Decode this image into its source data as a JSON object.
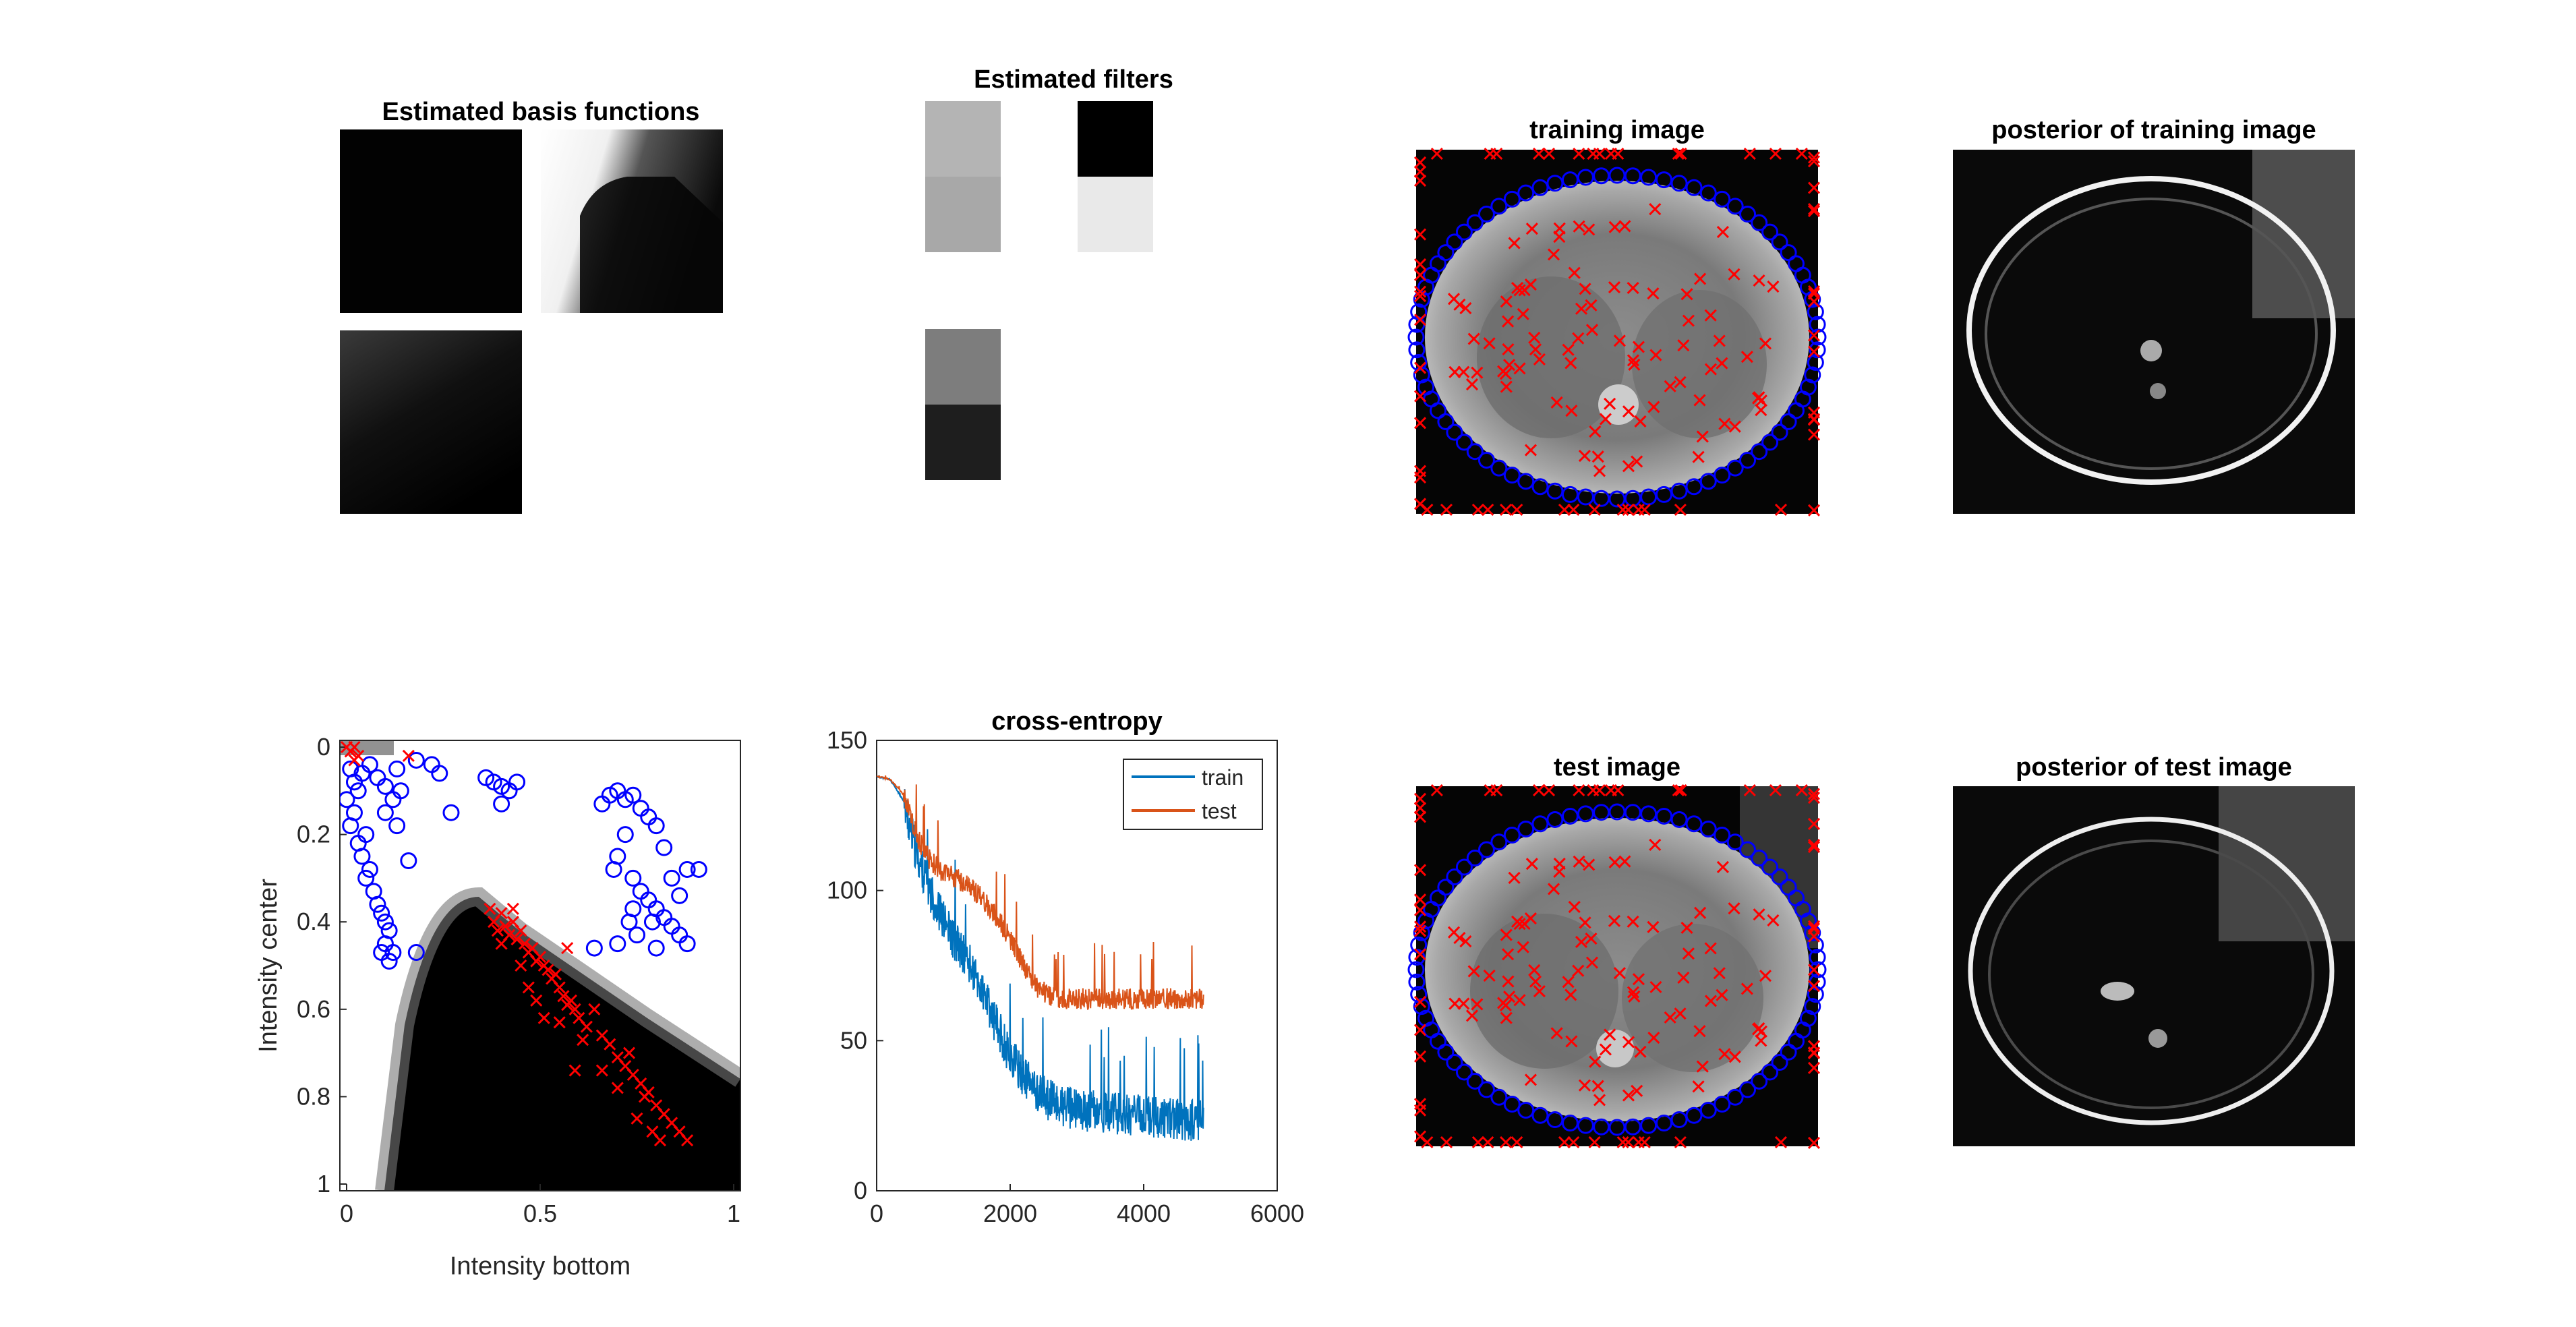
{
  "chart_data": [
    {
      "type": "image-grid",
      "title": "Estimated basis functions",
      "panels": [
        {
          "name": "basis-1",
          "shade": "dark"
        },
        {
          "name": "basis-2",
          "shade": "dark-corner"
        },
        {
          "name": "basis-3",
          "shade": "dark-gradient"
        },
        {
          "name": "basis-4",
          "shade": "blank"
        }
      ]
    },
    {
      "type": "image-grid",
      "title": "Estimated filters",
      "filters": [
        {
          "name": "filter-1",
          "blocks": [
            "#b4b4b4",
            "#a8a8a8"
          ]
        },
        {
          "name": "filter-2",
          "blocks": [
            "#000000",
            "#e9e9e9"
          ]
        },
        {
          "name": "filter-3",
          "blocks": [
            "#7d7d7d",
            "#1e1e1e"
          ]
        }
      ]
    },
    {
      "type": "image",
      "title": "training image",
      "markers": {
        "circle_color": "#0000ff",
        "cross_color": "#ff0000"
      }
    },
    {
      "type": "image",
      "title": "posterior of training image"
    },
    {
      "type": "scatter",
      "title": "",
      "xlabel": "Intensity bottom",
      "ylabel": "Intensity center",
      "xlim": [
        0,
        1
      ],
      "ylim": [
        0,
        1
      ],
      "y_reversed": true,
      "xticks": [
        "0",
        "0.5",
        "1"
      ],
      "yticks": [
        "0",
        "0.2",
        "0.4",
        "0.6",
        "0.8",
        "1"
      ],
      "series": [
        {
          "marker": "circle",
          "color": "#0000ff",
          "points": [
            [
              0.01,
              0.05
            ],
            [
              0.02,
              0.08
            ],
            [
              0.03,
              0.1
            ],
            [
              0.0,
              0.12
            ],
            [
              0.02,
              0.15
            ],
            [
              0.01,
              0.18
            ],
            [
              0.03,
              0.22
            ],
            [
              0.05,
              0.2
            ],
            [
              0.04,
              0.25
            ],
            [
              0.06,
              0.28
            ],
            [
              0.05,
              0.3
            ],
            [
              0.07,
              0.33
            ],
            [
              0.08,
              0.36
            ],
            [
              0.09,
              0.38
            ],
            [
              0.1,
              0.4
            ],
            [
              0.11,
              0.42
            ],
            [
              0.1,
              0.45
            ],
            [
              0.12,
              0.47
            ],
            [
              0.11,
              0.49
            ],
            [
              0.09,
              0.47
            ],
            [
              0.04,
              0.06
            ],
            [
              0.06,
              0.04
            ],
            [
              0.08,
              0.07
            ],
            [
              0.1,
              0.09
            ],
            [
              0.12,
              0.12
            ],
            [
              0.14,
              0.1
            ],
            [
              0.13,
              0.05
            ],
            [
              0.18,
              0.03
            ],
            [
              0.22,
              0.04
            ],
            [
              0.24,
              0.06
            ],
            [
              0.1,
              0.15
            ],
            [
              0.13,
              0.18
            ],
            [
              0.16,
              0.26
            ],
            [
              0.18,
              0.47
            ],
            [
              0.27,
              0.15
            ],
            [
              0.36,
              0.07
            ],
            [
              0.38,
              0.08
            ],
            [
              0.4,
              0.09
            ],
            [
              0.42,
              0.1
            ],
            [
              0.44,
              0.08
            ],
            [
              0.4,
              0.13
            ],
            [
              0.68,
              0.11
            ],
            [
              0.7,
              0.1
            ],
            [
              0.72,
              0.12
            ],
            [
              0.74,
              0.11
            ],
            [
              0.76,
              0.14
            ],
            [
              0.78,
              0.16
            ],
            [
              0.8,
              0.18
            ],
            [
              0.72,
              0.2
            ],
            [
              0.7,
              0.25
            ],
            [
              0.69,
              0.28
            ],
            [
              0.74,
              0.3
            ],
            [
              0.76,
              0.33
            ],
            [
              0.78,
              0.35
            ],
            [
              0.8,
              0.37
            ],
            [
              0.82,
              0.39
            ],
            [
              0.84,
              0.41
            ],
            [
              0.86,
              0.43
            ],
            [
              0.88,
              0.45
            ],
            [
              0.84,
              0.3
            ],
            [
              0.88,
              0.28
            ],
            [
              0.91,
              0.28
            ],
            [
              0.82,
              0.23
            ],
            [
              0.79,
              0.4
            ],
            [
              0.75,
              0.43
            ],
            [
              0.73,
              0.4
            ],
            [
              0.7,
              0.45
            ],
            [
              0.64,
              0.46
            ],
            [
              0.66,
              0.13
            ],
            [
              0.86,
              0.34
            ],
            [
              0.8,
              0.46
            ],
            [
              0.74,
              0.37
            ]
          ]
        },
        {
          "marker": "cross",
          "color": "#ff0000",
          "points": [
            [
              0.0,
              0.0
            ],
            [
              0.01,
              0.01
            ],
            [
              0.02,
              0.0
            ],
            [
              0.03,
              0.02
            ],
            [
              0.02,
              0.03
            ],
            [
              0.16,
              0.02
            ],
            [
              0.37,
              0.37
            ],
            [
              0.38,
              0.4
            ],
            [
              0.39,
              0.42
            ],
            [
              0.4,
              0.38
            ],
            [
              0.41,
              0.41
            ],
            [
              0.42,
              0.43
            ],
            [
              0.43,
              0.4
            ],
            [
              0.44,
              0.44
            ],
            [
              0.45,
              0.42
            ],
            [
              0.46,
              0.45
            ],
            [
              0.47,
              0.47
            ],
            [
              0.48,
              0.46
            ],
            [
              0.49,
              0.49
            ],
            [
              0.5,
              0.48
            ],
            [
              0.51,
              0.5
            ],
            [
              0.52,
              0.51
            ],
            [
              0.53,
              0.53
            ],
            [
              0.54,
              0.52
            ],
            [
              0.55,
              0.55
            ],
            [
              0.56,
              0.57
            ],
            [
              0.57,
              0.59
            ],
            [
              0.58,
              0.58
            ],
            [
              0.59,
              0.6
            ],
            [
              0.6,
              0.62
            ],
            [
              0.62,
              0.64
            ],
            [
              0.64,
              0.6
            ],
            [
              0.66,
              0.66
            ],
            [
              0.68,
              0.68
            ],
            [
              0.7,
              0.71
            ],
            [
              0.72,
              0.73
            ],
            [
              0.74,
              0.75
            ],
            [
              0.76,
              0.77
            ],
            [
              0.78,
              0.79
            ],
            [
              0.8,
              0.82
            ],
            [
              0.82,
              0.84
            ],
            [
              0.84,
              0.86
            ],
            [
              0.86,
              0.88
            ],
            [
              0.88,
              0.9
            ],
            [
              0.79,
              0.88
            ],
            [
              0.81,
              0.9
            ],
            [
              0.77,
              0.8
            ],
            [
              0.73,
              0.7
            ],
            [
              0.66,
              0.74
            ],
            [
              0.59,
              0.74
            ],
            [
              0.55,
              0.63
            ],
            [
              0.51,
              0.62
            ],
            [
              0.47,
              0.55
            ],
            [
              0.57,
              0.46
            ],
            [
              0.49,
              0.58
            ],
            [
              0.43,
              0.37
            ],
            [
              0.4,
              0.45
            ],
            [
              0.45,
              0.5
            ],
            [
              0.61,
              0.67
            ],
            [
              0.7,
              0.78
            ],
            [
              0.75,
              0.85
            ]
          ]
        }
      ]
    },
    {
      "type": "line",
      "title": "cross-entropy",
      "xlabel": "",
      "ylabel": "",
      "xlim": [
        0,
        6000
      ],
      "ylim": [
        0,
        150
      ],
      "xticks": [
        "0",
        "2000",
        "4000",
        "6000"
      ],
      "yticks": [
        "0",
        "50",
        "100",
        "150"
      ],
      "legend_position": "top-right",
      "series": [
        {
          "name": "train",
          "color": "#0072bd",
          "points": [
            [
              0,
              138
            ],
            [
              200,
              137
            ],
            [
              400,
              130
            ],
            [
              600,
              112
            ],
            [
              800,
              100
            ],
            [
              1000,
              90
            ],
            [
              1200,
              82
            ],
            [
              1400,
              75
            ],
            [
              1600,
              65
            ],
            [
              1800,
              55
            ],
            [
              2000,
              45
            ],
            [
              2200,
              38
            ],
            [
              2400,
              33
            ],
            [
              2600,
              30
            ],
            [
              2800,
              28
            ],
            [
              3000,
              27
            ],
            [
              3500,
              26
            ],
            [
              4000,
              25
            ],
            [
              4500,
              24
            ],
            [
              4900,
              23
            ]
          ],
          "noise": 14
        },
        {
          "name": "test",
          "color": "#d95319",
          "points": [
            [
              0,
              138
            ],
            [
              200,
              137
            ],
            [
              400,
              132
            ],
            [
              600,
              118
            ],
            [
              800,
              110
            ],
            [
              1000,
              106
            ],
            [
              1200,
              104
            ],
            [
              1400,
              101
            ],
            [
              1600,
              97
            ],
            [
              1800,
              91
            ],
            [
              2000,
              84
            ],
            [
              2200,
              75
            ],
            [
              2400,
              68
            ],
            [
              2600,
              65
            ],
            [
              2800,
              64
            ],
            [
              3000,
              64
            ],
            [
              3500,
              64
            ],
            [
              4000,
              64
            ],
            [
              4500,
              64
            ],
            [
              4900,
              64
            ]
          ],
          "noise": 7
        }
      ]
    },
    {
      "type": "image",
      "title": "test image",
      "markers": {
        "circle_color": "#0000ff",
        "cross_color": "#ff0000"
      }
    },
    {
      "type": "image",
      "title": "posterior of test image"
    }
  ]
}
